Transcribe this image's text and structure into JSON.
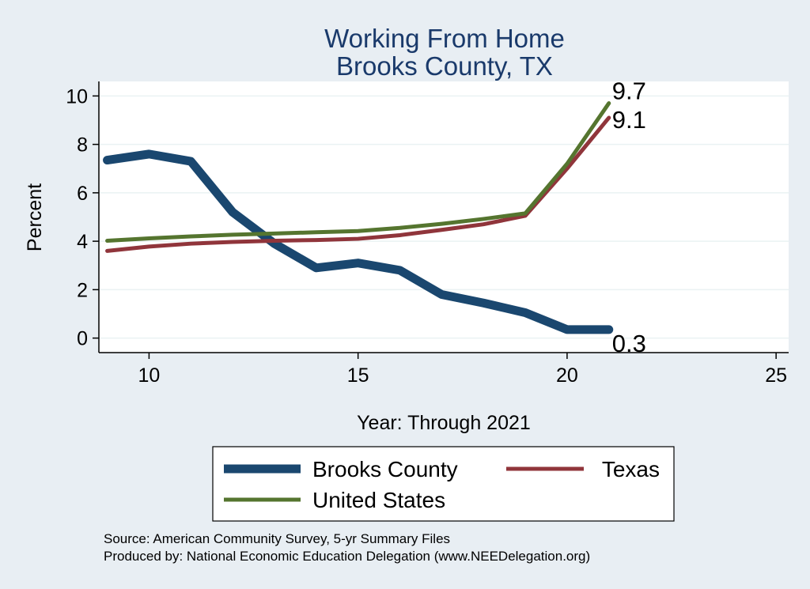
{
  "chart_data": {
    "type": "line",
    "title": [
      "Working From Home",
      "Brooks County, TX"
    ],
    "xlabel": "Year: Through 2021",
    "ylabel": "Percent",
    "xlim": [
      8.8,
      25.3
    ],
    "ylim": [
      -0.6,
      10.6
    ],
    "xticks": [
      10,
      15,
      20,
      25
    ],
    "yticks": [
      0,
      2,
      4,
      6,
      8,
      10
    ],
    "grid": true,
    "legend_position": "bottom",
    "x": [
      9,
      10,
      11,
      12,
      13,
      14,
      15,
      16,
      17,
      18,
      19,
      20,
      21
    ],
    "series": [
      {
        "name": "Brooks County",
        "color": "#1a476f",
        "width": 11,
        "values": [
          7.35,
          7.6,
          7.3,
          5.2,
          3.9,
          2.9,
          3.1,
          2.8,
          1.8,
          1.45,
          1.05,
          0.35,
          0.35
        ],
        "end_label": "0.3"
      },
      {
        "name": "Texas",
        "color": "#90353b",
        "width": 5,
        "values": [
          3.6,
          3.78,
          3.9,
          3.97,
          4.02,
          4.05,
          4.1,
          4.25,
          4.47,
          4.7,
          5.05,
          7.0,
          9.1
        ],
        "end_label": "9.1"
      },
      {
        "name": "United States",
        "color": "#55752f",
        "width": 5,
        "values": [
          4.02,
          4.12,
          4.2,
          4.27,
          4.32,
          4.37,
          4.42,
          4.55,
          4.72,
          4.92,
          5.15,
          7.2,
          9.7
        ],
        "end_label": "9.7"
      }
    ]
  },
  "notes": [
    "Source: American Community Survey, 5-yr Summary Files",
    "Produced by: National Economic Education Delegation (www.NEEDelegation.org)"
  ]
}
